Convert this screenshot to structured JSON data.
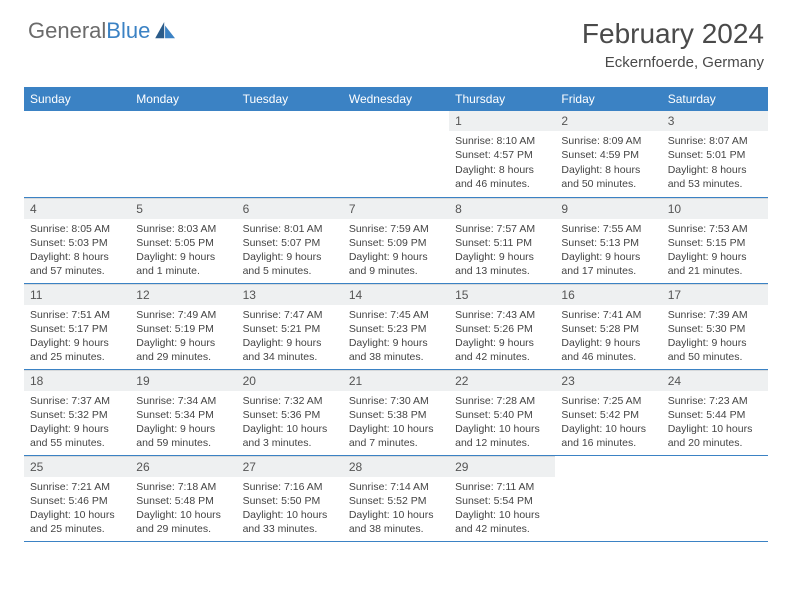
{
  "brand": {
    "name_part1": "General",
    "name_part2": "Blue"
  },
  "title": "February 2024",
  "location": "Eckernfoerde, Germany",
  "colors": {
    "header_bg": "#3b82c4",
    "daynum_bg": "#eef0f1",
    "text": "#444444",
    "rule": "#3b82c4"
  },
  "weekdays": [
    "Sunday",
    "Monday",
    "Tuesday",
    "Wednesday",
    "Thursday",
    "Friday",
    "Saturday"
  ],
  "grid": [
    [
      null,
      null,
      null,
      null,
      {
        "n": "1",
        "sunrise": "8:10 AM",
        "sunset": "4:57 PM",
        "daylight": "8 hours and 46 minutes."
      },
      {
        "n": "2",
        "sunrise": "8:09 AM",
        "sunset": "4:59 PM",
        "daylight": "8 hours and 50 minutes."
      },
      {
        "n": "3",
        "sunrise": "8:07 AM",
        "sunset": "5:01 PM",
        "daylight": "8 hours and 53 minutes."
      }
    ],
    [
      {
        "n": "4",
        "sunrise": "8:05 AM",
        "sunset": "5:03 PM",
        "daylight": "8 hours and 57 minutes."
      },
      {
        "n": "5",
        "sunrise": "8:03 AM",
        "sunset": "5:05 PM",
        "daylight": "9 hours and 1 minute."
      },
      {
        "n": "6",
        "sunrise": "8:01 AM",
        "sunset": "5:07 PM",
        "daylight": "9 hours and 5 minutes."
      },
      {
        "n": "7",
        "sunrise": "7:59 AM",
        "sunset": "5:09 PM",
        "daylight": "9 hours and 9 minutes."
      },
      {
        "n": "8",
        "sunrise": "7:57 AM",
        "sunset": "5:11 PM",
        "daylight": "9 hours and 13 minutes."
      },
      {
        "n": "9",
        "sunrise": "7:55 AM",
        "sunset": "5:13 PM",
        "daylight": "9 hours and 17 minutes."
      },
      {
        "n": "10",
        "sunrise": "7:53 AM",
        "sunset": "5:15 PM",
        "daylight": "9 hours and 21 minutes."
      }
    ],
    [
      {
        "n": "11",
        "sunrise": "7:51 AM",
        "sunset": "5:17 PM",
        "daylight": "9 hours and 25 minutes."
      },
      {
        "n": "12",
        "sunrise": "7:49 AM",
        "sunset": "5:19 PM",
        "daylight": "9 hours and 29 minutes."
      },
      {
        "n": "13",
        "sunrise": "7:47 AM",
        "sunset": "5:21 PM",
        "daylight": "9 hours and 34 minutes."
      },
      {
        "n": "14",
        "sunrise": "7:45 AM",
        "sunset": "5:23 PM",
        "daylight": "9 hours and 38 minutes."
      },
      {
        "n": "15",
        "sunrise": "7:43 AM",
        "sunset": "5:26 PM",
        "daylight": "9 hours and 42 minutes."
      },
      {
        "n": "16",
        "sunrise": "7:41 AM",
        "sunset": "5:28 PM",
        "daylight": "9 hours and 46 minutes."
      },
      {
        "n": "17",
        "sunrise": "7:39 AM",
        "sunset": "5:30 PM",
        "daylight": "9 hours and 50 minutes."
      }
    ],
    [
      {
        "n": "18",
        "sunrise": "7:37 AM",
        "sunset": "5:32 PM",
        "daylight": "9 hours and 55 minutes."
      },
      {
        "n": "19",
        "sunrise": "7:34 AM",
        "sunset": "5:34 PM",
        "daylight": "9 hours and 59 minutes."
      },
      {
        "n": "20",
        "sunrise": "7:32 AM",
        "sunset": "5:36 PM",
        "daylight": "10 hours and 3 minutes."
      },
      {
        "n": "21",
        "sunrise": "7:30 AM",
        "sunset": "5:38 PM",
        "daylight": "10 hours and 7 minutes."
      },
      {
        "n": "22",
        "sunrise": "7:28 AM",
        "sunset": "5:40 PM",
        "daylight": "10 hours and 12 minutes."
      },
      {
        "n": "23",
        "sunrise": "7:25 AM",
        "sunset": "5:42 PM",
        "daylight": "10 hours and 16 minutes."
      },
      {
        "n": "24",
        "sunrise": "7:23 AM",
        "sunset": "5:44 PM",
        "daylight": "10 hours and 20 minutes."
      }
    ],
    [
      {
        "n": "25",
        "sunrise": "7:21 AM",
        "sunset": "5:46 PM",
        "daylight": "10 hours and 25 minutes."
      },
      {
        "n": "26",
        "sunrise": "7:18 AM",
        "sunset": "5:48 PM",
        "daylight": "10 hours and 29 minutes."
      },
      {
        "n": "27",
        "sunrise": "7:16 AM",
        "sunset": "5:50 PM",
        "daylight": "10 hours and 33 minutes."
      },
      {
        "n": "28",
        "sunrise": "7:14 AM",
        "sunset": "5:52 PM",
        "daylight": "10 hours and 38 minutes."
      },
      {
        "n": "29",
        "sunrise": "7:11 AM",
        "sunset": "5:54 PM",
        "daylight": "10 hours and 42 minutes."
      },
      null,
      null
    ]
  ],
  "labels": {
    "sunrise": "Sunrise:",
    "sunset": "Sunset:",
    "daylight": "Daylight:"
  }
}
